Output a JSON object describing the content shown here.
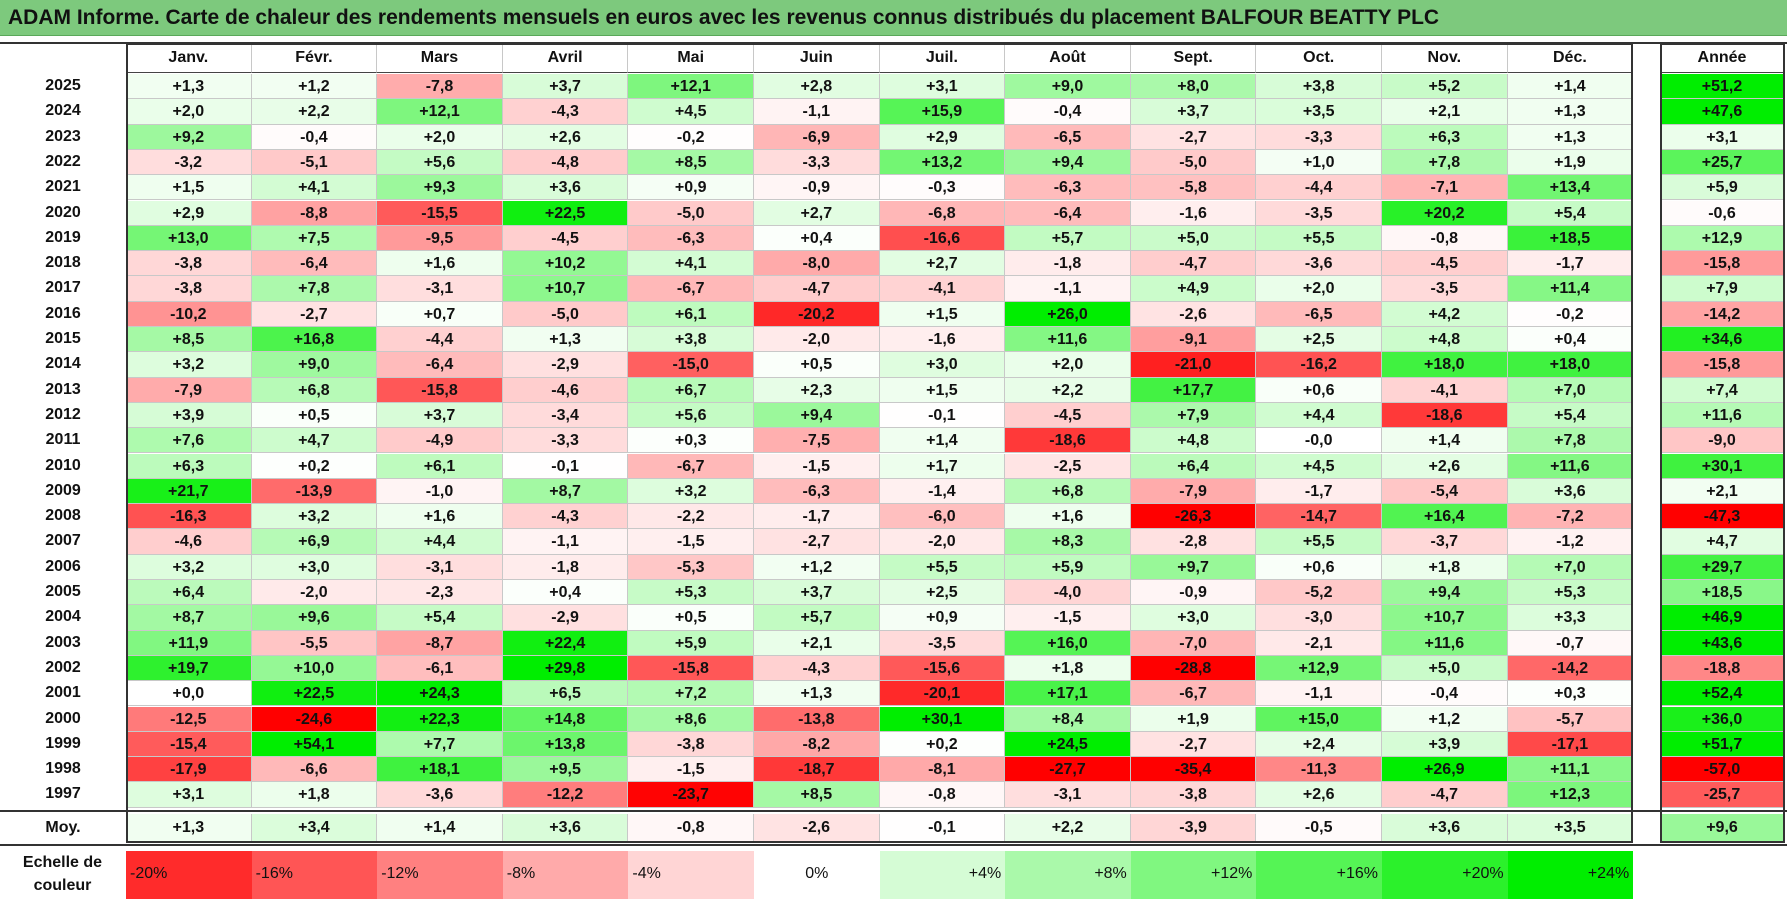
{
  "title": "ADAM Informe. Carte de chaleur des rendements mensuels en euros avec les revenus connus distribués du placement BALFOUR BEATTY PLC",
  "chart_data": {
    "type": "heatmap",
    "columns": [
      "Janv.",
      "Févr.",
      "Mars",
      "Avril",
      "Mai",
      "Juin",
      "Juil.",
      "Août",
      "Sept.",
      "Oct.",
      "Nov.",
      "Déc."
    ],
    "year_column_label": "Année",
    "rows": [
      {
        "label": "2025",
        "values": [
          "+1,3",
          "+1,2",
          "-7,8",
          "+3,7",
          "+12,1",
          "+2,8",
          "+3,1",
          "+9,0",
          "+8,0",
          "+3,8",
          "+5,2",
          "+1,4"
        ],
        "year": "+51,2"
      },
      {
        "label": "2024",
        "values": [
          "+2,0",
          "+2,2",
          "+12,1",
          "-4,3",
          "+4,5",
          "-1,1",
          "+15,9",
          "-0,4",
          "+3,7",
          "+3,5",
          "+2,1",
          "+1,3"
        ],
        "year": "+47,6"
      },
      {
        "label": "2023",
        "values": [
          "+9,2",
          "-0,4",
          "+2,0",
          "+2,6",
          "-0,2",
          "-6,9",
          "+2,9",
          "-6,5",
          "-2,7",
          "-3,3",
          "+6,3",
          "+1,3"
        ],
        "year": "+3,1"
      },
      {
        "label": "2022",
        "values": [
          "-3,2",
          "-5,1",
          "+5,6",
          "-4,8",
          "+8,5",
          "-3,3",
          "+13,2",
          "+9,4",
          "-5,0",
          "+1,0",
          "+7,8",
          "+1,9"
        ],
        "year": "+25,7"
      },
      {
        "label": "2021",
        "values": [
          "+1,5",
          "+4,1",
          "+9,3",
          "+3,6",
          "+0,9",
          "-0,9",
          "-0,3",
          "-6,3",
          "-5,8",
          "-4,4",
          "-7,1",
          "+13,4"
        ],
        "year": "+5,9"
      },
      {
        "label": "2020",
        "values": [
          "+2,9",
          "-8,8",
          "-15,5",
          "+22,5",
          "-5,0",
          "+2,7",
          "-6,8",
          "-6,4",
          "-1,6",
          "-3,5",
          "+20,2",
          "+5,4"
        ],
        "year": "-0,6"
      },
      {
        "label": "2019",
        "values": [
          "+13,0",
          "+7,5",
          "-9,5",
          "-4,5",
          "-6,3",
          "+0,4",
          "-16,6",
          "+5,7",
          "+5,0",
          "+5,5",
          "-0,8",
          "+18,5"
        ],
        "year": "+12,9"
      },
      {
        "label": "2018",
        "values": [
          "-3,8",
          "-6,4",
          "+1,6",
          "+10,2",
          "+4,1",
          "-8,0",
          "+2,7",
          "-1,8",
          "-4,7",
          "-3,6",
          "-4,5",
          "-1,7"
        ],
        "year": "-15,8"
      },
      {
        "label": "2017",
        "values": [
          "-3,8",
          "+7,8",
          "-3,1",
          "+10,7",
          "-6,7",
          "-4,7",
          "-4,1",
          "-1,1",
          "+4,9",
          "+2,0",
          "-3,5",
          "+11,4"
        ],
        "year": "+7,9"
      },
      {
        "label": "2016",
        "values": [
          "-10,2",
          "-2,7",
          "+0,7",
          "-5,0",
          "+6,1",
          "-20,2",
          "+1,5",
          "+26,0",
          "-2,6",
          "-6,5",
          "+4,2",
          "-0,2"
        ],
        "year": "-14,2"
      },
      {
        "label": "2015",
        "values": [
          "+8,5",
          "+16,8",
          "-4,4",
          "+1,3",
          "+3,8",
          "-2,0",
          "-1,6",
          "+11,6",
          "-9,1",
          "+2,5",
          "+4,8",
          "+0,4"
        ],
        "year": "+34,6"
      },
      {
        "label": "2014",
        "values": [
          "+3,2",
          "+9,0",
          "-6,4",
          "-2,9",
          "-15,0",
          "+0,5",
          "+3,0",
          "+2,0",
          "-21,0",
          "-16,2",
          "+18,0",
          "+18,0"
        ],
        "year": "-15,8"
      },
      {
        "label": "2013",
        "values": [
          "-7,9",
          "+6,8",
          "-15,8",
          "-4,6",
          "+6,7",
          "+2,3",
          "+1,5",
          "+2,2",
          "+17,7",
          "+0,6",
          "-4,1",
          "+7,0"
        ],
        "year": "+7,4"
      },
      {
        "label": "2012",
        "values": [
          "+3,9",
          "+0,5",
          "+3,7",
          "-3,4",
          "+5,6",
          "+9,4",
          "-0,1",
          "-4,5",
          "+7,9",
          "+4,4",
          "-18,6",
          "+5,4"
        ],
        "year": "+11,6"
      },
      {
        "label": "2011",
        "values": [
          "+7,6",
          "+4,7",
          "-4,9",
          "-3,3",
          "+0,3",
          "-7,5",
          "+1,4",
          "-18,6",
          "+4,8",
          "-0,0",
          "+1,4",
          "+7,8"
        ],
        "year": "-9,0"
      },
      {
        "label": "2010",
        "values": [
          "+6,3",
          "+0,2",
          "+6,1",
          "-0,1",
          "-6,7",
          "-1,5",
          "+1,7",
          "-2,5",
          "+6,4",
          "+4,5",
          "+2,6",
          "+11,6"
        ],
        "year": "+30,1"
      },
      {
        "label": "2009",
        "values": [
          "+21,7",
          "-13,9",
          "-1,0",
          "+8,7",
          "+3,2",
          "-6,3",
          "-1,4",
          "+6,8",
          "-7,9",
          "-1,7",
          "-5,4",
          "+3,6"
        ],
        "year": "+2,1"
      },
      {
        "label": "2008",
        "values": [
          "-16,3",
          "+3,2",
          "+1,6",
          "-4,3",
          "-2,2",
          "-1,7",
          "-6,0",
          "+1,6",
          "-26,3",
          "-14,7",
          "+16,4",
          "-7,2"
        ],
        "year": "-47,3"
      },
      {
        "label": "2007",
        "values": [
          "-4,6",
          "+6,9",
          "+4,4",
          "-1,1",
          "-1,5",
          "-2,7",
          "-2,0",
          "+8,3",
          "-2,8",
          "+5,5",
          "-3,7",
          "-1,2"
        ],
        "year": "+4,7"
      },
      {
        "label": "2006",
        "values": [
          "+3,2",
          "+3,0",
          "-3,1",
          "-1,8",
          "-5,3",
          "+1,2",
          "+5,5",
          "+5,9",
          "+9,7",
          "+0,6",
          "+1,8",
          "+7,0"
        ],
        "year": "+29,7"
      },
      {
        "label": "2005",
        "values": [
          "+6,4",
          "-2,0",
          "-2,3",
          "+0,4",
          "+5,3",
          "+3,7",
          "+2,5",
          "-4,0",
          "-0,9",
          "-5,2",
          "+9,4",
          "+5,3"
        ],
        "year": "+18,5"
      },
      {
        "label": "2004",
        "values": [
          "+8,7",
          "+9,6",
          "+5,4",
          "-2,9",
          "+0,5",
          "+5,7",
          "+0,9",
          "-1,5",
          "+3,0",
          "-3,0",
          "+10,7",
          "+3,3"
        ],
        "year": "+46,9"
      },
      {
        "label": "2003",
        "values": [
          "+11,9",
          "-5,5",
          "-8,7",
          "+22,4",
          "+5,9",
          "+2,1",
          "-3,5",
          "+16,0",
          "-7,0",
          "-2,1",
          "+11,6",
          "-0,7"
        ],
        "year": "+43,6"
      },
      {
        "label": "2002",
        "values": [
          "+19,7",
          "+10,0",
          "-6,1",
          "+29,8",
          "-15,8",
          "-4,3",
          "-15,6",
          "+1,8",
          "-28,8",
          "+12,9",
          "+5,0",
          "-14,2"
        ],
        "year": "-18,8"
      },
      {
        "label": "2001",
        "values": [
          "+0,0",
          "+22,5",
          "+24,3",
          "+6,5",
          "+7,2",
          "+1,3",
          "-20,1",
          "+17,1",
          "-6,7",
          "-1,1",
          "-0,4",
          "+0,3"
        ],
        "year": "+52,4"
      },
      {
        "label": "2000",
        "values": [
          "-12,5",
          "-24,6",
          "+22,3",
          "+14,8",
          "+8,6",
          "-13,8",
          "+30,1",
          "+8,4",
          "+1,9",
          "+15,0",
          "+1,2",
          "-5,7"
        ],
        "year": "+36,0"
      },
      {
        "label": "1999",
        "values": [
          "-15,4",
          "+54,1",
          "+7,7",
          "+13,8",
          "-3,8",
          "-8,2",
          "+0,2",
          "+24,5",
          "-2,7",
          "+2,4",
          "+3,9",
          "-17,1"
        ],
        "year": "+51,7"
      },
      {
        "label": "1998",
        "values": [
          "-17,9",
          "-6,6",
          "+18,1",
          "+9,5",
          "-1,5",
          "-18,7",
          "-8,1",
          "-27,7",
          "-35,4",
          "-11,3",
          "+26,9",
          "+11,1"
        ],
        "year": "-57,0"
      },
      {
        "label": "1997",
        "values": [
          "+3,1",
          "+1,8",
          "-3,6",
          "-12,2",
          "-23,7",
          "+8,5",
          "-0,8",
          "-3,1",
          "-3,8",
          "+2,6",
          "-4,7",
          "+12,3"
        ],
        "year": "-25,7"
      }
    ],
    "average": {
      "label": "Moy.",
      "values": [
        "+1,3",
        "+3,4",
        "+1,4",
        "+3,6",
        "-0,8",
        "-2,6",
        "-0,1",
        "+2,2",
        "-3,9",
        "-0,5",
        "+3,6",
        "+3,5"
      ],
      "year": "+9,6"
    },
    "scale": {
      "label": "Echelle de couleur",
      "stops": [
        {
          "label": "-20%",
          "value": -20
        },
        {
          "label": "-16%",
          "value": -16
        },
        {
          "label": "-12%",
          "value": -12
        },
        {
          "label": "-8%",
          "value": -8
        },
        {
          "label": "-4%",
          "value": -4
        },
        {
          "label": "0%",
          "value": 0
        },
        {
          "label": "+4%",
          "value": 4
        },
        {
          "label": "+8%",
          "value": 8
        },
        {
          "label": "+12%",
          "value": 12
        },
        {
          "label": "+16%",
          "value": 16
        },
        {
          "label": "+20%",
          "value": 20
        },
        {
          "label": "+24%",
          "value": 24
        }
      ]
    },
    "colors": {
      "negative": "#ff0000",
      "neutral": "#ffffff",
      "positive": "#00ee00",
      "title_bar": "#7dc97d"
    }
  }
}
